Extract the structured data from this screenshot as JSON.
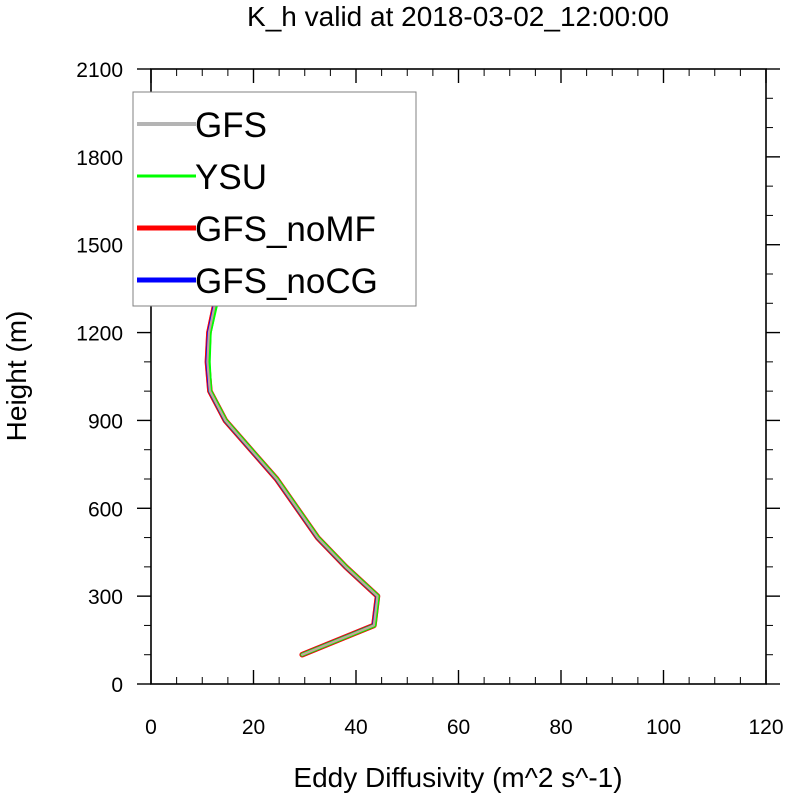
{
  "chart_data": {
    "type": "line",
    "title": "K_h valid at 2018-03-02_12:00:00",
    "xlabel": "Eddy Diffusivity (m^2 s^-1)",
    "ylabel": "Height (m)",
    "xlim": [
      0,
      120
    ],
    "ylim": [
      0,
      2100
    ],
    "x_ticks": [
      "0",
      "20",
      "40",
      "60",
      "80",
      "100",
      "120"
    ],
    "y_ticks": [
      "0",
      "300",
      "600",
      "900",
      "1200",
      "1500",
      "1800",
      "2100"
    ],
    "grid": false,
    "legend_position": "top-left",
    "series": [
      {
        "name": "GFS",
        "color": "#b4b4b4",
        "points": [
          [
            29.5,
            100
          ],
          [
            43.5,
            200
          ],
          [
            44.2,
            300
          ],
          [
            38.0,
            400
          ],
          [
            32.5,
            500
          ],
          [
            28.5,
            600
          ],
          [
            24.5,
            700
          ],
          [
            19.5,
            800
          ],
          [
            14.5,
            900
          ],
          [
            11.5,
            1000
          ],
          [
            11.0,
            1100
          ],
          [
            11.3,
            1200
          ],
          [
            12.5,
            1300
          ],
          [
            13.8,
            1400
          ],
          [
            15.0,
            1500
          ],
          [
            16.0,
            1600
          ],
          [
            17.0,
            1700
          ],
          [
            18.0,
            1800
          ],
          [
            18.8,
            1900
          ],
          [
            18.5,
            2000
          ]
        ]
      },
      {
        "name": "YSU",
        "color": "#00ff00",
        "points": [
          [
            29.5,
            100
          ],
          [
            43.6,
            200
          ],
          [
            44.3,
            300
          ],
          [
            38.1,
            400
          ],
          [
            32.6,
            500
          ],
          [
            28.6,
            600
          ],
          [
            24.6,
            700
          ],
          [
            19.6,
            800
          ],
          [
            14.6,
            900
          ],
          [
            11.6,
            1000
          ],
          [
            11.3,
            1100
          ],
          [
            11.5,
            1200
          ],
          [
            12.8,
            1300
          ],
          [
            14.1,
            1400
          ],
          [
            15.3,
            1500
          ],
          [
            16.3,
            1600
          ],
          [
            17.3,
            1700
          ],
          [
            18.2,
            1800
          ],
          [
            19.0,
            1900
          ],
          [
            18.6,
            2000
          ]
        ]
      },
      {
        "name": "GFS_noMF",
        "color": "#ff0000",
        "points": [
          [
            29.5,
            100
          ],
          [
            43.5,
            200
          ],
          [
            44.2,
            300
          ],
          [
            38.0,
            400
          ],
          [
            32.5,
            500
          ],
          [
            28.5,
            600
          ],
          [
            24.5,
            700
          ],
          [
            19.5,
            800
          ],
          [
            14.5,
            900
          ],
          [
            11.5,
            1000
          ],
          [
            11.0,
            1100
          ],
          [
            11.3,
            1200
          ],
          [
            12.5,
            1300
          ],
          [
            13.8,
            1400
          ],
          [
            15.0,
            1500
          ],
          [
            16.0,
            1600
          ],
          [
            17.0,
            1700
          ],
          [
            18.0,
            1800
          ],
          [
            18.8,
            1900
          ],
          [
            18.5,
            2000
          ]
        ]
      },
      {
        "name": "GFS_noCG",
        "color": "#0000ff",
        "points": [
          [
            29.5,
            100
          ],
          [
            43.5,
            200
          ],
          [
            44.2,
            300
          ],
          [
            38.0,
            400
          ],
          [
            32.5,
            500
          ],
          [
            28.5,
            600
          ],
          [
            24.5,
            700
          ],
          [
            19.5,
            800
          ],
          [
            14.5,
            900
          ],
          [
            11.5,
            1000
          ],
          [
            11.0,
            1100
          ],
          [
            11.3,
            1200
          ],
          [
            12.5,
            1300
          ],
          [
            13.8,
            1400
          ],
          [
            15.0,
            1500
          ],
          [
            16.0,
            1600
          ],
          [
            17.0,
            1700
          ],
          [
            18.0,
            1800
          ],
          [
            18.8,
            1900
          ],
          [
            18.5,
            2000
          ]
        ]
      }
    ],
    "top_line_color": "#c8a0a0"
  }
}
